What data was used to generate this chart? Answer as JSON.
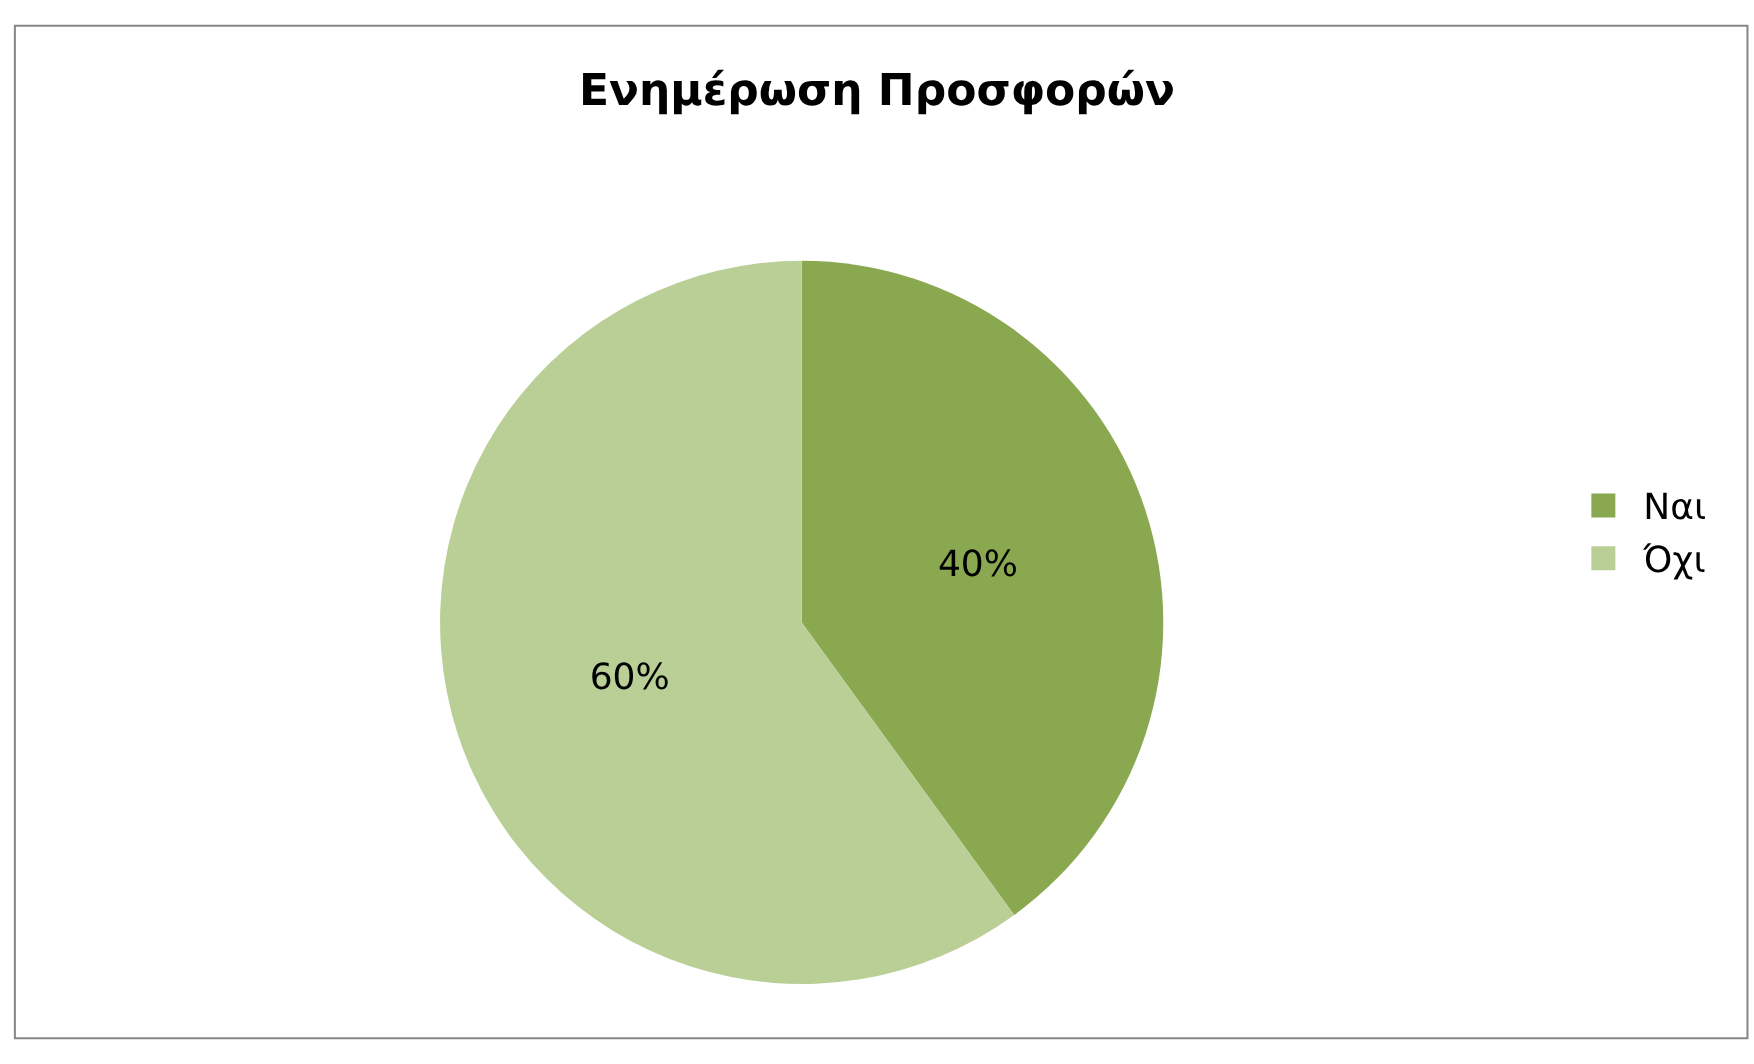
{
  "chart_data": {
    "type": "pie",
    "title": "Ενημέρωση Προσφορών",
    "categories": [
      "Ναι",
      "Όχι"
    ],
    "values": [
      40,
      60
    ],
    "value_labels": [
      "40%",
      "60%"
    ],
    "colors": [
      "#8aa84f",
      "#b9cf96"
    ],
    "legend": "right"
  }
}
